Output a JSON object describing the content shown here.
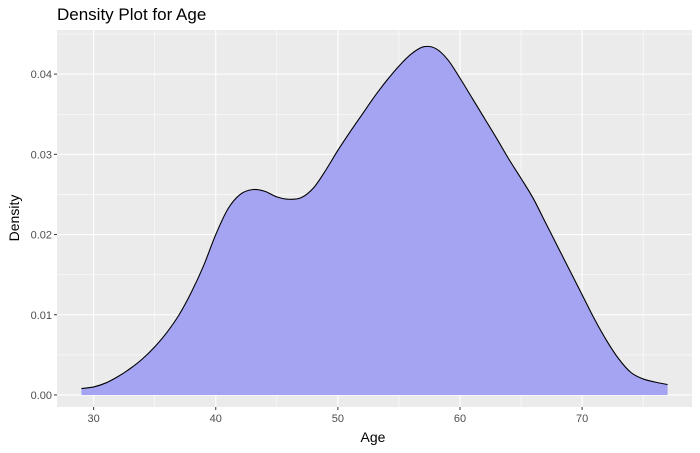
{
  "chart_data": {
    "type": "area",
    "title": "Density Plot for Age",
    "xlabel": "Age",
    "ylabel": "Density",
    "xlim": [
      27,
      79
    ],
    "ylim": [
      -0.0015,
      0.0455
    ],
    "x_ticks": [
      30,
      40,
      50,
      60,
      70
    ],
    "y_ticks": [
      0.0,
      0.01,
      0.02,
      0.03,
      0.04
    ],
    "y_tick_labels": [
      "0.00",
      "0.01",
      "0.02",
      "0.03",
      "0.04"
    ],
    "grid": true,
    "fill_color": "#a4a4f2",
    "line_color": "#000000",
    "panel_background": "#ebebeb",
    "series": [
      {
        "x": [
          29,
          30,
          31,
          32,
          33,
          34,
          35,
          36,
          37,
          38,
          39,
          40,
          41,
          42,
          43,
          44,
          45,
          46,
          47,
          48,
          49,
          50,
          51,
          52,
          53,
          54,
          55,
          56,
          57,
          58,
          59,
          60,
          61,
          62,
          63,
          64,
          65,
          66,
          67,
          68,
          69,
          70,
          71,
          72,
          73,
          74,
          75,
          76,
          77
        ],
        "y": [
          0.0008,
          0.001,
          0.0015,
          0.0023,
          0.0033,
          0.0045,
          0.006,
          0.0078,
          0.01,
          0.0128,
          0.0161,
          0.02,
          0.0232,
          0.025,
          0.0256,
          0.0254,
          0.0247,
          0.0244,
          0.0246,
          0.0258,
          0.028,
          0.0305,
          0.0328,
          0.035,
          0.0372,
          0.0392,
          0.041,
          0.0425,
          0.0434,
          0.0432,
          0.0418,
          0.0395,
          0.037,
          0.0345,
          0.032,
          0.0294,
          0.027,
          0.0245,
          0.0215,
          0.0185,
          0.0155,
          0.0125,
          0.0095,
          0.0068,
          0.0045,
          0.0028,
          0.002,
          0.0016,
          0.0013
        ]
      }
    ]
  }
}
